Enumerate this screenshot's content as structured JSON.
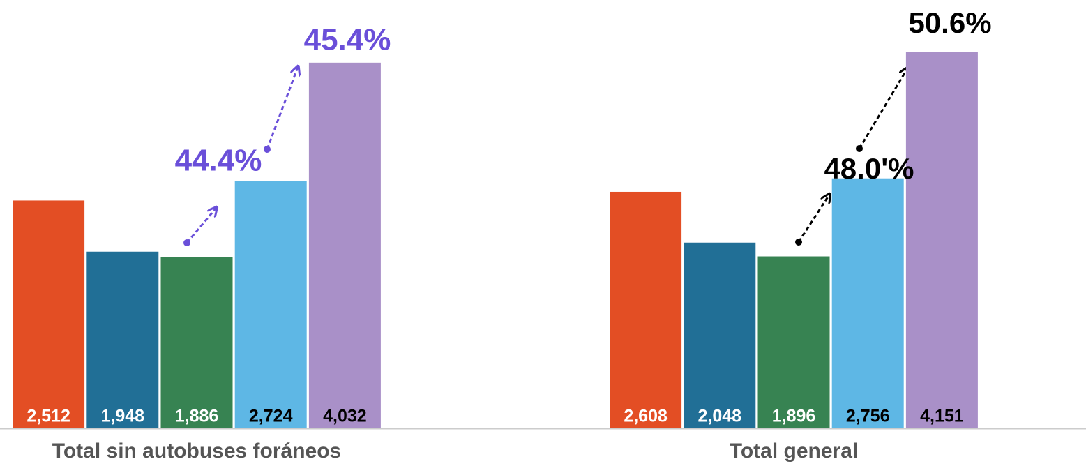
{
  "chart_data": {
    "type": "bar",
    "categories": [
      "Total sin autobuses foráneos",
      "Total general"
    ],
    "series": [
      {
        "color": "#e34e24",
        "values": [
          2512,
          2608
        ],
        "value_labels": [
          "2,512",
          "2,608"
        ]
      },
      {
        "color": "#216f96",
        "values": [
          1948,
          2048
        ],
        "value_labels": [
          "1,948",
          "2,048"
        ]
      },
      {
        "color": "#378352",
        "values": [
          1886,
          1896
        ],
        "value_labels": [
          "1,886",
          "1,896"
        ]
      },
      {
        "color": "#5eb7e5",
        "values": [
          2724,
          2756
        ],
        "value_labels": [
          "2,724",
          "2,756"
        ]
      },
      {
        "color": "#a990c8",
        "values": [
          4032,
          4151
        ],
        "value_labels": [
          "4,032",
          "4,151"
        ]
      }
    ],
    "ylim": [
      0,
      4500
    ],
    "annotations": [
      {
        "text": "44.4%",
        "color": "#6a4fd9"
      },
      {
        "text": "45.4%",
        "color": "#6a4fd9"
      },
      {
        "text": "48.0'%",
        "color": "#000000"
      },
      {
        "text": "50.6%",
        "color": "#000000"
      }
    ]
  }
}
